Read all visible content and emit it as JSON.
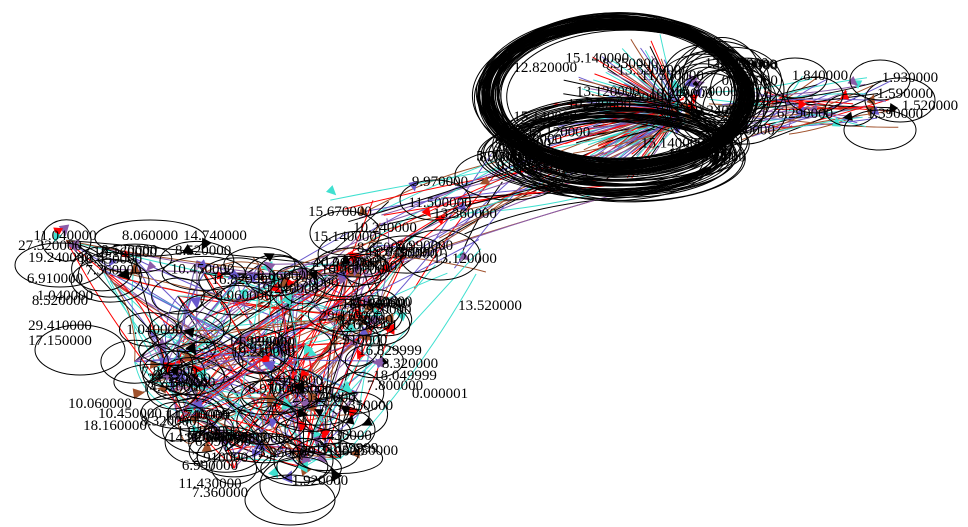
{
  "diagram": {
    "background": "#ffffff",
    "palette": {
      "ink": "#000000",
      "turquoise": "#40e0d0",
      "slateblue": "#6a5acd",
      "sienna": "#a0522d",
      "red": "#ff0000",
      "purple": "#8b5ca8"
    },
    "edge_colors": [
      "#40e0d0",
      "#6a5acd",
      "#a0522d",
      "#ff0000",
      "#000000",
      "#8b5ca8"
    ],
    "labels_right": [
      "1.840000",
      "1.930000",
      "1.590000",
      "1.390000",
      "6.290000",
      "1.520000"
    ],
    "labels_middle": [
      "9.970000",
      "11.500000",
      "13.360000",
      "15.670000",
      "15.140000",
      "10.240000",
      "5.990000",
      "13.120000",
      "8.350000",
      "13.520000",
      "12.820000",
      "0.060000"
    ],
    "labels_left": [
      "11.040000",
      "8.060000",
      "14.740000",
      "27.320000",
      "19.240000",
      "29.410000",
      "17.150000",
      "8.520000",
      "6.910000",
      "10.060000",
      "10.450000",
      "18.160000",
      "14.920000",
      "6.990000",
      "2.910000",
      "7.360000",
      "11.430000",
      "1.040000"
    ],
    "labels_lower": [
      "8.320000",
      "18.049999",
      "16.829999",
      "7.800000",
      "0.000001",
      "7.350000",
      "3.250000",
      "1.920000",
      "17.430000"
    ]
  }
}
